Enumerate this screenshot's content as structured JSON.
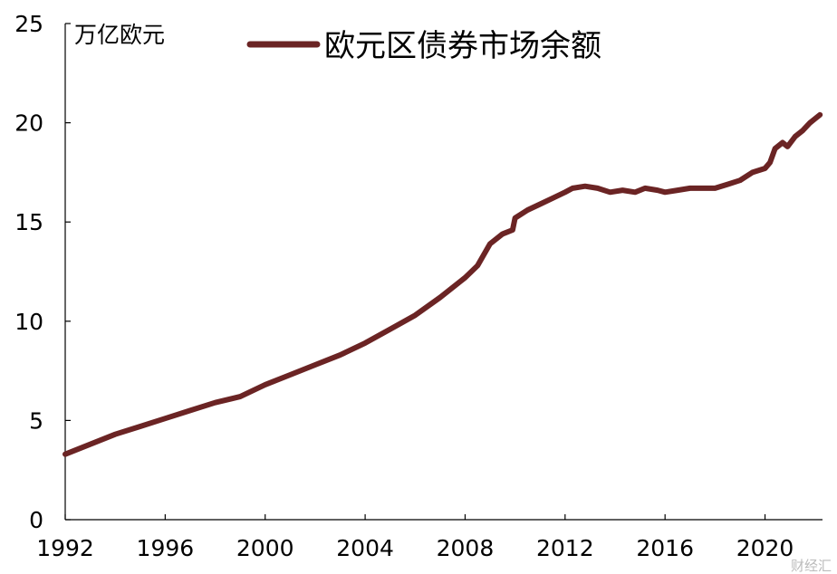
{
  "chart_data": {
    "type": "line",
    "title": "",
    "unit_label": "万亿欧元",
    "xlabel": "",
    "ylabel": "",
    "xlim": [
      1992,
      2022.3
    ],
    "ylim": [
      0,
      25
    ],
    "x_ticks": [
      1992,
      1996,
      2000,
      2004,
      2008,
      2012,
      2016,
      2020
    ],
    "y_ticks": [
      0,
      5,
      10,
      15,
      20,
      25
    ],
    "x_tick_labels": [
      "1992",
      "1996",
      "2000",
      "2004",
      "2008",
      "2012",
      "2016",
      "2020"
    ],
    "y_tick_labels": [
      "0",
      "5",
      "10",
      "15",
      "20",
      "25"
    ],
    "grid": false,
    "legend_position": "top",
    "series": [
      {
        "name": "欧元区债券市场余额",
        "color": "#6b2424",
        "x": [
          1992.0,
          1993.0,
          1994.0,
          1995.0,
          1996.0,
          1997.0,
          1998.0,
          1999.0,
          2000.0,
          2001.0,
          2002.0,
          2003.0,
          2004.0,
          2005.0,
          2006.0,
          2007.0,
          2008.0,
          2008.5,
          2009.0,
          2009.5,
          2009.9,
          2010.0,
          2010.5,
          2011.0,
          2011.5,
          2012.0,
          2012.3,
          2012.8,
          2013.3,
          2013.8,
          2014.3,
          2014.8,
          2015.2,
          2015.7,
          2016.0,
          2016.5,
          2017.0,
          2017.5,
          2018.0,
          2018.5,
          2019.0,
          2019.5,
          2020.0,
          2020.2,
          2020.4,
          2020.7,
          2020.9,
          2021.2,
          2021.5,
          2021.8,
          2022.0,
          2022.2
        ],
        "y": [
          3.3,
          3.8,
          4.3,
          4.7,
          5.1,
          5.5,
          5.9,
          6.2,
          6.8,
          7.3,
          7.8,
          8.3,
          8.9,
          9.6,
          10.3,
          11.2,
          12.2,
          12.8,
          13.9,
          14.4,
          14.6,
          15.2,
          15.6,
          15.9,
          16.2,
          16.5,
          16.7,
          16.8,
          16.7,
          16.5,
          16.6,
          16.5,
          16.7,
          16.6,
          16.5,
          16.6,
          16.7,
          16.7,
          16.7,
          16.9,
          17.1,
          17.5,
          17.7,
          18.0,
          18.7,
          19.0,
          18.8,
          19.3,
          19.6,
          20.0,
          20.2,
          20.4
        ]
      }
    ]
  },
  "watermark": "财经汇"
}
